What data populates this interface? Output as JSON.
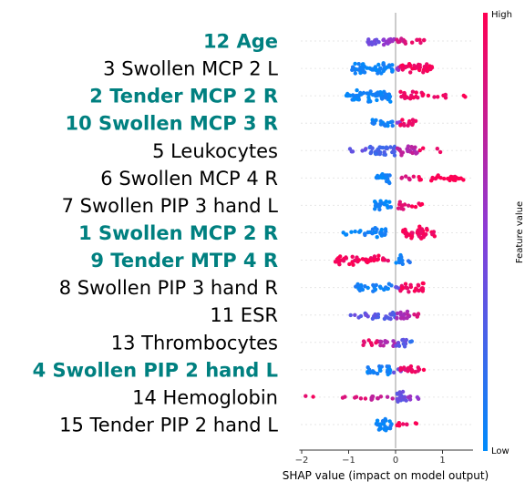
{
  "chart_data": {
    "type": "scatter",
    "subtype": "shap-beeswarm",
    "xlabel": "SHAP value (impact on model output)",
    "xlim": [
      -2.05,
      1.65
    ],
    "xticks": [
      "−2",
      "−1",
      "0",
      "1"
    ],
    "xtick_values": [
      -2,
      -1,
      0,
      1
    ],
    "colorbar": {
      "label": "Feature value",
      "high": "High",
      "low": "Low"
    },
    "colors": {
      "low": "#008bfb",
      "mid": "#8a3cd7",
      "high": "#ff0052",
      "highlight_label": "#008080"
    },
    "features": [
      {
        "label": "12 Age",
        "highlight": true,
        "clusters": [
          [
            -0.62,
            -0.35,
            0.4,
            0.5
          ],
          [
            -0.35,
            0.0,
            0.55,
            0.45
          ],
          [
            0.0,
            0.3,
            0.8,
            0.35
          ],
          [
            0.3,
            0.75,
            0.9,
            0.18
          ]
        ]
      },
      {
        "label": "3 Swollen MCP 2 L",
        "highlight": false,
        "clusters": [
          [
            -0.95,
            -0.05,
            0.05,
            0.7
          ],
          [
            0.0,
            0.3,
            0.55,
            0.2
          ],
          [
            0.1,
            0.8,
            0.95,
            0.6
          ]
        ]
      },
      {
        "label": "2 Tender MCP 2 R",
        "highlight": true,
        "clusters": [
          [
            -1.05,
            -0.1,
            0.05,
            0.75
          ],
          [
            0.1,
            0.6,
            0.95,
            0.45
          ],
          [
            0.6,
            1.1,
            0.95,
            0.15
          ],
          [
            1.45,
            1.5,
            1.0,
            0.02
          ]
        ]
      },
      {
        "label": "10 Swollen MCP 3 R",
        "highlight": true,
        "clusters": [
          [
            -0.5,
            -0.05,
            0.05,
            0.45
          ],
          [
            -0.05,
            0.1,
            0.5,
            0.15
          ],
          [
            0.1,
            0.5,
            0.92,
            0.4
          ]
        ]
      },
      {
        "label": "5 Leukocytes",
        "highlight": false,
        "clusters": [
          [
            -1.1,
            -0.6,
            0.35,
            0.15
          ],
          [
            -0.6,
            0.0,
            0.25,
            0.6
          ],
          [
            0.0,
            0.5,
            0.7,
            0.5
          ],
          [
            0.5,
            1.0,
            0.95,
            0.1
          ]
        ]
      },
      {
        "label": "6 Swollen MCP 4 R",
        "highlight": false,
        "clusters": [
          [
            -0.42,
            -0.12,
            0.05,
            0.85
          ],
          [
            0.1,
            0.4,
            0.85,
            0.25
          ],
          [
            0.4,
            1.45,
            1.0,
            0.3
          ]
        ]
      },
      {
        "label": "7 Swollen PIP 3 hand L",
        "highlight": false,
        "clusters": [
          [
            -0.5,
            -0.08,
            0.05,
            0.65
          ],
          [
            0.05,
            0.3,
            0.9,
            0.45
          ],
          [
            0.3,
            0.6,
            0.97,
            0.2
          ]
        ]
      },
      {
        "label": "1 Swollen MCP 2 R",
        "highlight": true,
        "clusters": [
          [
            -1.15,
            -0.55,
            0.05,
            0.2
          ],
          [
            -0.55,
            -0.2,
            0.05,
            0.6
          ],
          [
            0.15,
            0.85,
            0.95,
            0.75
          ]
        ]
      },
      {
        "label": "9 Tender MTP 4 R",
        "highlight": true,
        "clusters": [
          [
            -1.35,
            -0.35,
            0.97,
            0.55
          ],
          [
            -0.35,
            -0.05,
            0.9,
            0.2
          ],
          [
            0.0,
            0.2,
            0.05,
            0.55
          ],
          [
            0.2,
            0.35,
            0.1,
            0.15
          ]
        ]
      },
      {
        "label": "8 Swollen PIP 3 hand R",
        "highlight": false,
        "clusters": [
          [
            -0.85,
            -0.05,
            0.05,
            0.4
          ],
          [
            -0.05,
            0.15,
            0.4,
            0.25
          ],
          [
            0.1,
            0.6,
            0.95,
            0.6
          ]
        ]
      },
      {
        "label": "11 ESR",
        "highlight": false,
        "clusters": [
          [
            -1.0,
            -0.5,
            0.35,
            0.2
          ],
          [
            -0.5,
            0.0,
            0.3,
            0.5
          ],
          [
            0.0,
            0.3,
            0.65,
            0.6
          ],
          [
            0.3,
            0.5,
            0.85,
            0.25
          ]
        ]
      },
      {
        "label": "13 Thrombocytes",
        "highlight": false,
        "clusters": [
          [
            -0.7,
            -0.35,
            0.9,
            0.3
          ],
          [
            -0.35,
            0.0,
            0.65,
            0.45
          ],
          [
            0.0,
            0.25,
            0.35,
            0.55
          ],
          [
            0.25,
            0.45,
            0.15,
            0.2
          ]
        ]
      },
      {
        "label": "4 Swollen PIP 2 hand L",
        "highlight": true,
        "clusters": [
          [
            -0.6,
            -0.1,
            0.05,
            0.55
          ],
          [
            -0.1,
            0.15,
            0.4,
            0.2
          ],
          [
            0.1,
            0.5,
            0.92,
            0.6
          ],
          [
            0.5,
            0.7,
            0.97,
            0.15
          ]
        ]
      },
      {
        "label": "14 Hemoglobin",
        "highlight": false,
        "clusters": [
          [
            -1.95,
            -1.75,
            0.9,
            0.05
          ],
          [
            -1.35,
            -0.6,
            0.85,
            0.1
          ],
          [
            -0.6,
            -0.05,
            0.75,
            0.25
          ],
          [
            -0.05,
            0.25,
            0.35,
            0.7
          ],
          [
            0.25,
            0.5,
            0.55,
            0.25
          ]
        ]
      },
      {
        "label": "15 Tender PIP 2 hand L",
        "highlight": false,
        "clusters": [
          [
            -0.42,
            -0.05,
            0.05,
            0.8
          ],
          [
            0.0,
            0.5,
            0.95,
            0.25
          ]
        ]
      }
    ]
  }
}
